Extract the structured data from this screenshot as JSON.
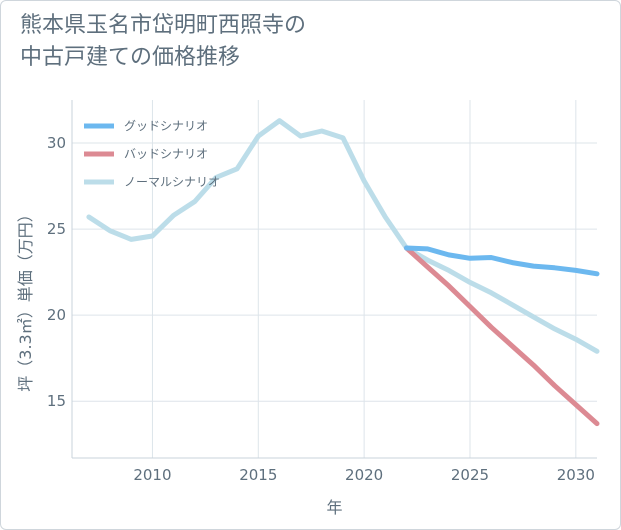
{
  "title_lines": [
    "熊本県玉名市岱明町西照寺の",
    "中古戸建ての価格推移"
  ],
  "chart_data": {
    "type": "line",
    "xlabel": "年",
    "ylabel": "坪（3.3㎡）単価（万円）",
    "xlim": [
      2006.2,
      2031
    ],
    "ylim": [
      11.7,
      32.5
    ],
    "x_ticks": [
      2010,
      2015,
      2020,
      2025,
      2030
    ],
    "y_ticks": [
      15,
      20,
      25,
      30
    ],
    "grid": true,
    "legend_position": "top-left",
    "series": [
      {
        "name": "グッドシナリオ",
        "color": "#6cb8ef",
        "x": [
          2022,
          2023,
          2024,
          2025,
          2026,
          2027,
          2028,
          2029,
          2030,
          2031
        ],
        "y": [
          23.9,
          23.85,
          23.5,
          23.3,
          23.35,
          23.05,
          22.85,
          22.75,
          22.6,
          22.4
        ]
      },
      {
        "name": "バッドシナリオ",
        "color": "#dc8a93",
        "x": [
          2022,
          2023,
          2024,
          2025,
          2026,
          2027,
          2028,
          2029,
          2030,
          2031
        ],
        "y": [
          23.9,
          22.8,
          21.7,
          20.5,
          19.3,
          18.2,
          17.1,
          15.9,
          14.8,
          13.7
        ]
      },
      {
        "name": "ノーマルシナリオ",
        "color": "#bcdde9",
        "x": [
          2007,
          2008,
          2009,
          2010,
          2011,
          2012,
          2013,
          2014,
          2015,
          2016,
          2017,
          2018,
          2019,
          2020,
          2021,
          2022,
          2023,
          2024,
          2025,
          2026,
          2027,
          2028,
          2029,
          2030,
          2031
        ],
        "y": [
          25.7,
          24.9,
          24.4,
          24.6,
          25.8,
          26.6,
          28.0,
          28.5,
          30.4,
          31.3,
          30.4,
          30.7,
          30.3,
          27.8,
          25.7,
          23.9,
          23.2,
          22.6,
          21.9,
          21.3,
          20.6,
          19.9,
          19.2,
          18.6,
          17.9
        ]
      }
    ]
  }
}
